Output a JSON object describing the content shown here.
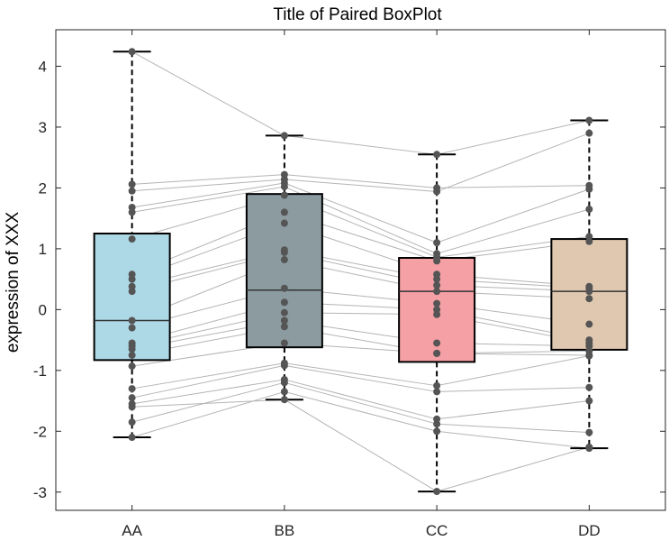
{
  "chart_data": {
    "type": "box",
    "title": "Title of Paired BoxPlot",
    "xlabel": "",
    "ylabel": "expression of XXX",
    "categories": [
      "AA",
      "BB",
      "CC",
      "DD"
    ],
    "ylim": [
      -3.3,
      4.6
    ],
    "yticks": [
      -3,
      -2,
      -1,
      0,
      1,
      2,
      3,
      4
    ],
    "ytick_labels": [
      "-3",
      "-2",
      "-1",
      "0",
      "1",
      "2",
      "3",
      "4"
    ],
    "grid": false,
    "colors": {
      "box_fill": [
        "#add8e6",
        "#8c9ba0",
        "#f4a0a5",
        "#e0c8b0"
      ],
      "point": "#555555",
      "pair_line": "#b4b4b4",
      "axis": "#262626"
    },
    "boxes": [
      {
        "name": "AA",
        "whisker_low": -2.1,
        "q1": -0.83,
        "median": -0.18,
        "q3": 1.25,
        "whisker_high": 4.24
      },
      {
        "name": "BB",
        "whisker_low": -1.48,
        "q1": -0.62,
        "median": 0.32,
        "q3": 1.9,
        "whisker_high": 2.86
      },
      {
        "name": "CC",
        "whisker_low": -2.99,
        "q1": -0.86,
        "median": 0.3,
        "q3": 0.85,
        "whisker_high": 2.55
      },
      {
        "name": "DD",
        "whisker_low": -2.28,
        "q1": -0.66,
        "median": 0.3,
        "q3": 1.16,
        "whisker_high": 3.11
      }
    ],
    "pairs": [
      [
        4.24,
        2.86,
        2.55,
        3.11
      ],
      [
        2.06,
        2.22,
        2.0,
        2.04
      ],
      [
        1.95,
        2.14,
        1.94,
        2.9
      ],
      [
        1.68,
        2.08,
        1.1,
        1.98
      ],
      [
        1.6,
        2.02,
        0.92,
        1.65
      ],
      [
        1.16,
        1.88,
        0.86,
        1.2
      ],
      [
        0.58,
        1.6,
        0.8,
        1.12
      ],
      [
        0.5,
        1.42,
        0.58,
        0.38
      ],
      [
        0.38,
        0.98,
        0.5,
        0.35
      ],
      [
        0.3,
        0.94,
        0.4,
        0.3
      ],
      [
        -0.18,
        0.82,
        0.3,
        0.18
      ],
      [
        -0.3,
        0.35,
        0.1,
        -0.24
      ],
      [
        -0.55,
        0.12,
        0.0,
        -0.5
      ],
      [
        -0.6,
        -0.05,
        -0.08,
        -0.55
      ],
      [
        -0.65,
        -0.18,
        -0.55,
        -0.6
      ],
      [
        -0.75,
        -0.28,
        -0.72,
        -0.68
      ],
      [
        -0.93,
        -0.55,
        -0.72,
        -0.75
      ],
      [
        -1.3,
        -0.88,
        -1.25,
        -0.76
      ],
      [
        -1.45,
        -0.92,
        -1.35,
        -1.28
      ],
      [
        -1.55,
        -1.15,
        -1.8,
        -1.5
      ],
      [
        -1.85,
        -1.2,
        -1.88,
        -2.02
      ],
      [
        -2.1,
        -1.35,
        -2.0,
        -2.28
      ],
      [
        -1.6,
        -1.48,
        -2.99,
        -2.26
      ]
    ]
  }
}
